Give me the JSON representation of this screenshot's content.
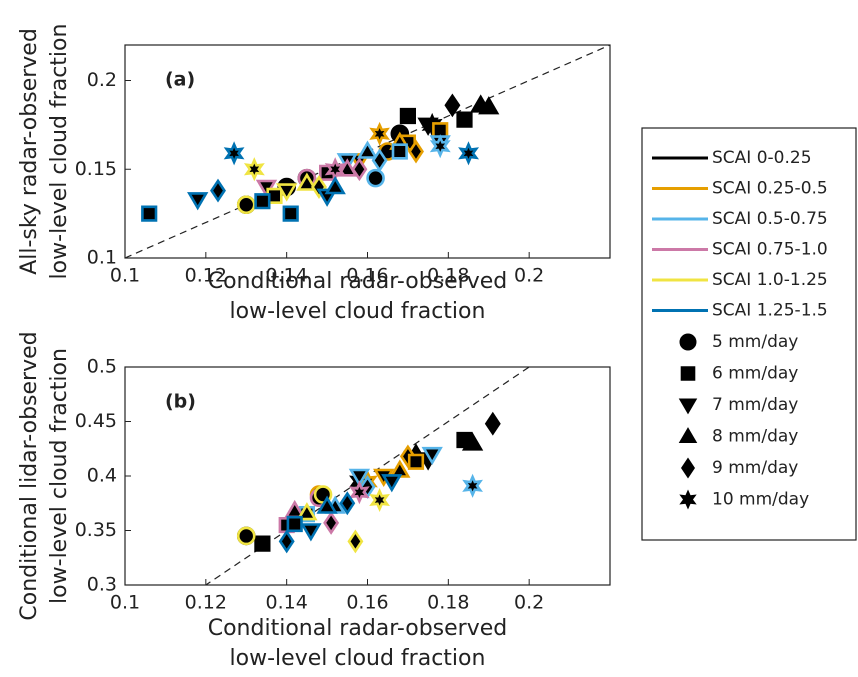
{
  "chart_data": [
    {
      "type": "scatter",
      "panel_label": "(a)",
      "xlabel": [
        "Conditional radar-observed",
        "low-level cloud fraction"
      ],
      "ylabel": [
        "All-sky radar-observed",
        "low-level cloud fraction"
      ],
      "xlim": [
        0.1,
        0.22
      ],
      "xticks": [
        0.1,
        0.12,
        0.14,
        0.16,
        0.18,
        0.2
      ],
      "ylim": [
        0.1,
        0.22
      ],
      "yticks": [
        0.1,
        0.15,
        0.2
      ],
      "reference_line": {
        "slope": 1
      },
      "series": [
        {
          "name": "SCAI 0-0.25",
          "color": "#000000",
          "x": [
            0.13,
            0.145,
            0.168,
            0.17,
            0.184,
            0.175,
            0.188,
            0.19,
            0.181,
            0.176,
            0.14
          ],
          "y": [
            0.13,
            0.145,
            0.17,
            0.18,
            0.178,
            0.175,
            0.186,
            0.185,
            0.186,
            0.175,
            0.14
          ],
          "markers": [
            "circle",
            "circle",
            "circle",
            "square",
            "square",
            "triangle-down",
            "triangle-up",
            "triangle-up",
            "diamond",
            "hexagram",
            "circle"
          ]
        },
        {
          "name": "SCAI 0.25-0.5",
          "color": "#e69f00",
          "x": [
            0.165,
            0.17,
            0.158,
            0.168,
            0.172,
            0.163,
            0.178
          ],
          "y": [
            0.16,
            0.165,
            0.155,
            0.165,
            0.16,
            0.17,
            0.172
          ],
          "markers": [
            "circle",
            "square",
            "triangle-down",
            "triangle-up",
            "diamond",
            "hexagram",
            "square"
          ]
        },
        {
          "name": "SCAI 0.5-0.75",
          "color": "#56b4e9",
          "x": [
            0.162,
            0.168,
            0.155,
            0.178,
            0.16,
            0.178,
            0.163
          ],
          "y": [
            0.145,
            0.16,
            0.155,
            0.165,
            0.16,
            0.163,
            0.155
          ],
          "markers": [
            "circle",
            "square",
            "triangle-down",
            "triangle-down",
            "triangle-up",
            "hexagram",
            "diamond"
          ]
        },
        {
          "name": "SCAI 0.75-1.0",
          "color": "#cc79a7",
          "x": [
            0.145,
            0.15,
            0.135,
            0.155,
            0.158,
            0.152
          ],
          "y": [
            0.145,
            0.148,
            0.14,
            0.15,
            0.15,
            0.15
          ],
          "markers": [
            "circle",
            "square",
            "triangle-down",
            "triangle-up",
            "diamond",
            "hexagram"
          ]
        },
        {
          "name": "SCAI 1.0-1.25",
          "color": "#f0e442",
          "x": [
            0.13,
            0.137,
            0.14,
            0.145,
            0.132,
            0.148
          ],
          "y": [
            0.13,
            0.135,
            0.138,
            0.142,
            0.15,
            0.14
          ],
          "markers": [
            "circle",
            "square",
            "triangle-down",
            "triangle-up",
            "hexagram",
            "diamond"
          ]
        },
        {
          "name": "SCAI 1.25-1.5",
          "color": "#0072b2",
          "x": [
            0.106,
            0.118,
            0.123,
            0.127,
            0.141,
            0.15,
            0.152,
            0.185,
            0.134
          ],
          "y": [
            0.125,
            0.133,
            0.138,
            0.159,
            0.125,
            0.135,
            0.14,
            0.159,
            0.132
          ],
          "markers": [
            "square",
            "triangle-down",
            "diamond",
            "hexagram",
            "square",
            "triangle-down",
            "triangle-up",
            "hexagram",
            "square"
          ]
        }
      ]
    },
    {
      "type": "scatter",
      "panel_label": "(b)",
      "xlabel": [
        "Conditional radar-observed",
        "low-level cloud fraction"
      ],
      "ylabel": [
        "Conditional lidar-observed",
        "low-level cloud fraction"
      ],
      "xlim": [
        0.1,
        0.22
      ],
      "xticks": [
        0.1,
        0.12,
        0.14,
        0.16,
        0.18,
        0.2
      ],
      "ylim": [
        0.3,
        0.5
      ],
      "yticks": [
        0.3,
        0.35,
        0.4,
        0.45,
        0.5
      ],
      "reference_line": {
        "slope": 2.5
      },
      "series": [
        {
          "name": "SCAI 0-0.25",
          "color": "#000000",
          "x": [
            0.13,
            0.134,
            0.184,
            0.186,
            0.191,
            0.175,
            0.172,
            0.158
          ],
          "y": [
            0.345,
            0.338,
            0.433,
            0.43,
            0.448,
            0.415,
            0.42,
            0.395
          ],
          "markers": [
            "circle",
            "square",
            "square",
            "triangle-up",
            "diamond",
            "triangle-down",
            "triangle-up",
            "hexagram"
          ]
        },
        {
          "name": "SCAI 0.25-0.5",
          "color": "#e69f00",
          "x": [
            0.148,
            0.168,
            0.17,
            0.172,
            0.16,
            0.164
          ],
          "y": [
            0.383,
            0.405,
            0.418,
            0.413,
            0.395,
            0.4
          ],
          "markers": [
            "circle",
            "triangle-up",
            "diamond",
            "square",
            "hexagram",
            "triangle-down"
          ]
        },
        {
          "name": "SCAI 0.5-0.75",
          "color": "#56b4e9",
          "x": [
            0.158,
            0.176,
            0.186,
            0.16,
            0.145,
            0.152
          ],
          "y": [
            0.4,
            0.42,
            0.391,
            0.39,
            0.365,
            0.372
          ],
          "markers": [
            "triangle-down",
            "triangle-down",
            "hexagram",
            "diamond",
            "square",
            "triangle-up"
          ]
        },
        {
          "name": "SCAI 0.75-1.0",
          "color": "#cc79a7",
          "x": [
            0.142,
            0.151,
            0.158,
            0.148,
            0.14
          ],
          "y": [
            0.368,
            0.357,
            0.385,
            0.38,
            0.355
          ],
          "markers": [
            "triangle-up",
            "diamond",
            "hexagram",
            "circle",
            "square"
          ]
        },
        {
          "name": "SCAI 1.0-1.25",
          "color": "#f0e442",
          "x": [
            0.13,
            0.157,
            0.163,
            0.145,
            0.149
          ],
          "y": [
            0.345,
            0.34,
            0.378,
            0.366,
            0.383
          ],
          "markers": [
            "circle",
            "diamond",
            "hexagram",
            "triangle-up",
            "circle"
          ]
        },
        {
          "name": "SCAI 1.25-1.5",
          "color": "#0072b2",
          "x": [
            0.14,
            0.142,
            0.146,
            0.15,
            0.155,
            0.166
          ],
          "y": [
            0.34,
            0.356,
            0.35,
            0.372,
            0.375,
            0.395
          ],
          "markers": [
            "diamond",
            "square",
            "triangle-down",
            "triangle-up",
            "diamond",
            "triangle-down"
          ]
        }
      ]
    }
  ],
  "marker_legend": [
    {
      "marker": "circle",
      "label": "5 mm/day"
    },
    {
      "marker": "square",
      "label": "6 mm/day"
    },
    {
      "marker": "triangle-down",
      "label": "7 mm/day"
    },
    {
      "marker": "triangle-up",
      "label": "8 mm/day"
    },
    {
      "marker": "diamond",
      "label": "9 mm/day"
    },
    {
      "marker": "hexagram",
      "label": "10 mm/day"
    }
  ]
}
